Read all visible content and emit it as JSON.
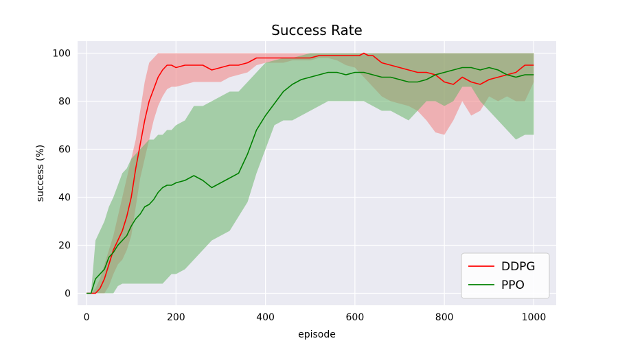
{
  "chart_data": {
    "type": "line",
    "title": "Success Rate",
    "xlabel": "episode",
    "ylabel": "success (%)",
    "xlim": [
      -20,
      1050
    ],
    "ylim": [
      -5,
      105
    ],
    "xticks": [
      0,
      200,
      400,
      600,
      800,
      1000
    ],
    "yticks": [
      0,
      20,
      40,
      60,
      80,
      100
    ],
    "grid": true,
    "legend_position": "bottom-right",
    "background_color": "#eaeaf2",
    "series": [
      {
        "name": "DDPG",
        "color": "#ff0000",
        "band_color": "#f08080",
        "x": [
          0,
          10,
          20,
          30,
          40,
          50,
          60,
          70,
          80,
          90,
          100,
          110,
          120,
          130,
          140,
          150,
          160,
          170,
          180,
          190,
          200,
          220,
          240,
          260,
          280,
          300,
          320,
          340,
          360,
          380,
          400,
          420,
          440,
          460,
          480,
          500,
          520,
          540,
          560,
          580,
          600,
          610,
          620,
          630,
          640,
          660,
          680,
          700,
          720,
          740,
          760,
          780,
          800,
          820,
          840,
          860,
          880,
          900,
          920,
          940,
          960,
          980,
          1000
        ],
        "mean": [
          0,
          0,
          0,
          2,
          6,
          12,
          18,
          22,
          26,
          32,
          40,
          52,
          62,
          72,
          80,
          85,
          90,
          93,
          95,
          95,
          94,
          95,
          95,
          95,
          93,
          94,
          95,
          95,
          96,
          98,
          98,
          98,
          98,
          98,
          98,
          98,
          99,
          99,
          99,
          99,
          99,
          99,
          100,
          99,
          99,
          96,
          95,
          94,
          93,
          92,
          92,
          91,
          88,
          87,
          90,
          88,
          87,
          89,
          90,
          91,
          92,
          95,
          95
        ],
        "upper": [
          0,
          0,
          2,
          6,
          12,
          18,
          24,
          32,
          40,
          48,
          56,
          64,
          76,
          88,
          96,
          98,
          100,
          100,
          100,
          100,
          100,
          100,
          100,
          100,
          100,
          100,
          100,
          100,
          100,
          100,
          100,
          100,
          100,
          100,
          100,
          100,
          100,
          100,
          100,
          100,
          100,
          100,
          100,
          100,
          100,
          100,
          100,
          100,
          100,
          100,
          100,
          100,
          100,
          100,
          100,
          100,
          100,
          100,
          100,
          100,
          100,
          100,
          100
        ],
        "lower": [
          0,
          0,
          0,
          0,
          0,
          3,
          8,
          12,
          14,
          18,
          24,
          36,
          48,
          56,
          64,
          72,
          78,
          82,
          85,
          86,
          86,
          87,
          88,
          88,
          88,
          88,
          90,
          91,
          92,
          95,
          96,
          96,
          96,
          97,
          97,
          97,
          98,
          98,
          97,
          95,
          94,
          92,
          90,
          88,
          86,
          82,
          80,
          79,
          78,
          76,
          72,
          67,
          66,
          72,
          80,
          74,
          76,
          82,
          80,
          82,
          80,
          80,
          88
        ]
      },
      {
        "name": "PPO",
        "color": "#008000",
        "band_color": "#6ab46a",
        "x": [
          0,
          10,
          20,
          30,
          40,
          50,
          60,
          70,
          80,
          90,
          100,
          110,
          120,
          130,
          140,
          150,
          160,
          170,
          180,
          190,
          200,
          220,
          240,
          260,
          280,
          300,
          320,
          340,
          360,
          380,
          400,
          420,
          440,
          460,
          480,
          500,
          520,
          540,
          560,
          580,
          600,
          620,
          640,
          660,
          680,
          700,
          720,
          740,
          760,
          780,
          800,
          820,
          840,
          860,
          880,
          900,
          920,
          940,
          960,
          980,
          1000
        ],
        "mean": [
          0,
          0,
          6,
          8,
          10,
          15,
          17,
          20,
          22,
          24,
          28,
          31,
          33,
          36,
          37,
          39,
          42,
          44,
          45,
          45,
          46,
          47,
          49,
          47,
          44,
          46,
          48,
          50,
          58,
          68,
          74,
          79,
          84,
          87,
          89,
          90,
          91,
          92,
          92,
          91,
          92,
          92,
          91,
          90,
          90,
          89,
          88,
          88,
          89,
          91,
          92,
          93,
          94,
          94,
          93,
          94,
          93,
          91,
          90,
          91,
          91
        ],
        "upper": [
          0,
          0,
          22,
          26,
          30,
          36,
          40,
          45,
          50,
          52,
          56,
          58,
          60,
          62,
          64,
          64,
          66,
          66,
          68,
          68,
          70,
          72,
          78,
          78,
          80,
          82,
          84,
          84,
          88,
          92,
          96,
          97,
          98,
          98,
          99,
          100,
          100,
          100,
          100,
          100,
          100,
          100,
          100,
          100,
          100,
          100,
          100,
          100,
          100,
          100,
          100,
          100,
          100,
          100,
          100,
          100,
          100,
          100,
          100,
          100,
          100
        ],
        "lower": [
          0,
          0,
          0,
          0,
          0,
          0,
          0,
          3,
          4,
          4,
          4,
          4,
          4,
          4,
          4,
          4,
          4,
          4,
          6,
          8,
          8,
          10,
          14,
          18,
          22,
          24,
          26,
          32,
          38,
          50,
          60,
          70,
          72,
          72,
          74,
          76,
          78,
          80,
          80,
          80,
          80,
          80,
          78,
          76,
          76,
          74,
          72,
          76,
          80,
          80,
          78,
          80,
          86,
          86,
          80,
          76,
          72,
          68,
          64,
          66,
          66
        ]
      }
    ]
  }
}
